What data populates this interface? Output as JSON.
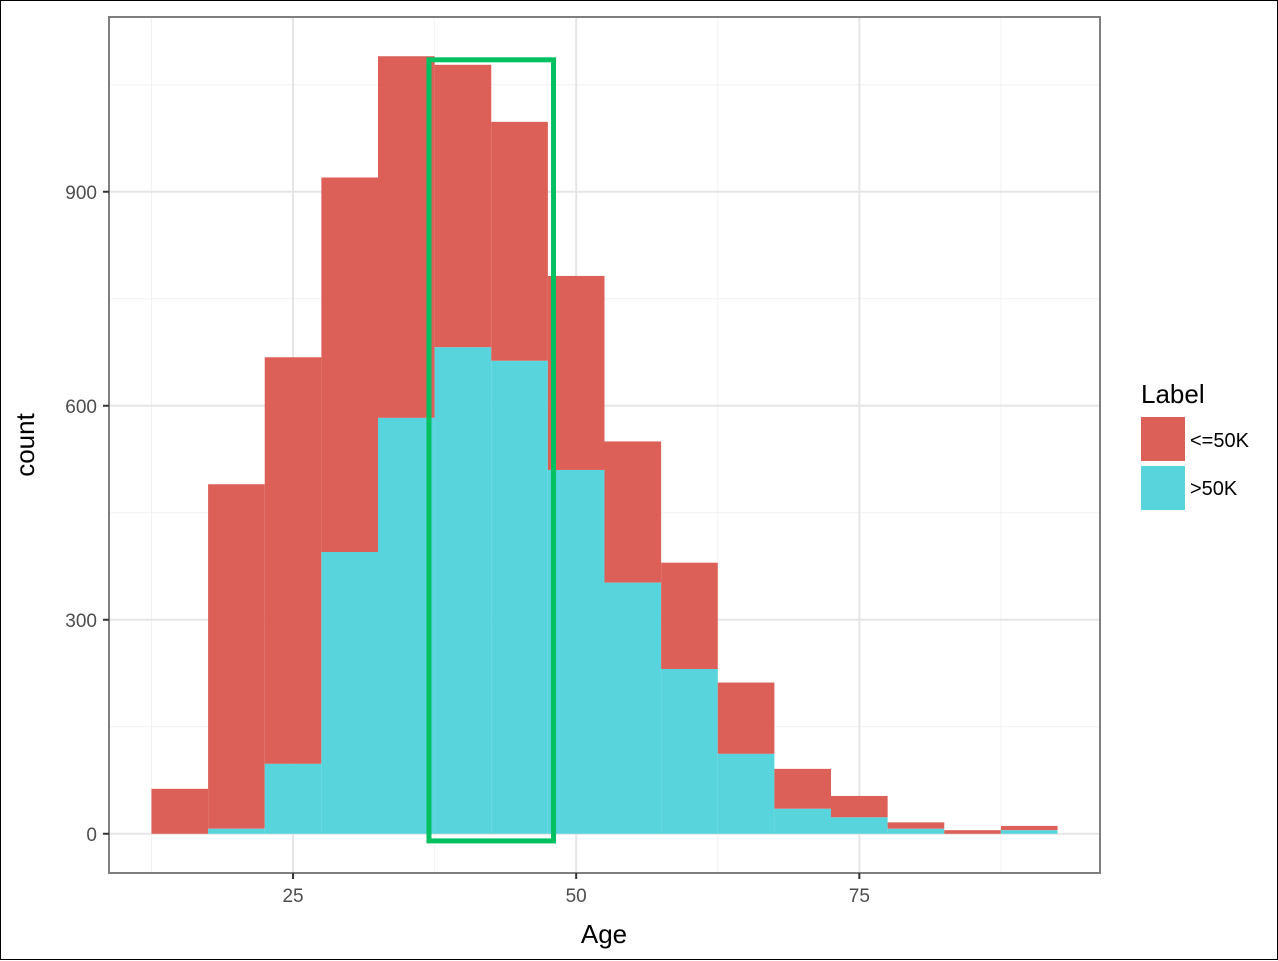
{
  "chart_data": {
    "type": "histogram",
    "xlabel": "Age",
    "ylabel": "count",
    "xlim": [
      8.75,
      96.25
    ],
    "ylim": [
      -55,
      1145
    ],
    "x_ticks": [
      25,
      50,
      75
    ],
    "y_ticks": [
      0,
      300,
      600,
      900
    ],
    "bin_width": 5,
    "bins": [
      {
        "x0": 12.5,
        "x1": 17.5,
        "total": 63,
        "gt50k": 0
      },
      {
        "x0": 17.5,
        "x1": 22.5,
        "total": 490,
        "gt50k": 7
      },
      {
        "x0": 22.5,
        "x1": 27.5,
        "total": 668,
        "gt50k": 98
      },
      {
        "x0": 27.5,
        "x1": 32.5,
        "total": 920,
        "gt50k": 395
      },
      {
        "x0": 32.5,
        "x1": 37.5,
        "total": 1090,
        "gt50k": 583
      },
      {
        "x0": 37.5,
        "x1": 42.5,
        "total": 1078,
        "gt50k": 682
      },
      {
        "x0": 42.5,
        "x1": 47.5,
        "total": 998,
        "gt50k": 663
      },
      {
        "x0": 47.5,
        "x1": 52.5,
        "total": 782,
        "gt50k": 510
      },
      {
        "x0": 52.5,
        "x1": 57.5,
        "total": 550,
        "gt50k": 352
      },
      {
        "x0": 57.5,
        "x1": 62.5,
        "total": 380,
        "gt50k": 231
      },
      {
        "x0": 62.5,
        "x1": 67.5,
        "total": 212,
        "gt50k": 112
      },
      {
        "x0": 67.5,
        "x1": 72.5,
        "total": 91,
        "gt50k": 35
      },
      {
        "x0": 72.5,
        "x1": 77.5,
        "total": 53,
        "gt50k": 23
      },
      {
        "x0": 77.5,
        "x1": 82.5,
        "total": 16,
        "gt50k": 7
      },
      {
        "x0": 82.5,
        "x1": 87.5,
        "total": 5,
        "gt50k": 0
      },
      {
        "x0": 87.5,
        "x1": 92.5,
        "total": 11,
        "gt50k": 5
      }
    ],
    "legend": {
      "title": "Label",
      "position": "right",
      "items": [
        {
          "label": "<=50K",
          "color": "#dc5f58"
        },
        {
          "label": ">50K",
          "color": "#58d4dc"
        }
      ]
    },
    "grid": true,
    "highlight": {
      "x0": 37,
      "x1": 48,
      "y0": -10,
      "y1": 1085,
      "color": "#00c060"
    }
  }
}
